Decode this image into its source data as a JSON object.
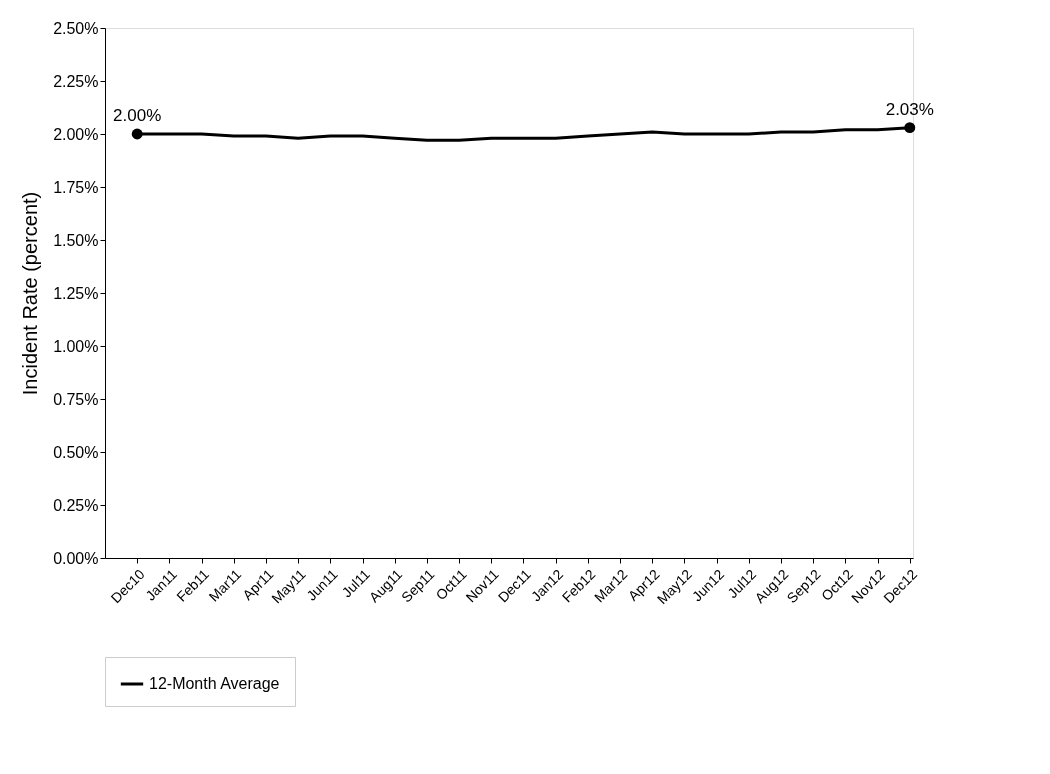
{
  "chart_data": {
    "type": "line",
    "ylabel": "Incident Rate (percent)",
    "categories": [
      "Dec10",
      "Jan11",
      "Feb11",
      "Mar11",
      "Apr11",
      "May11",
      "Jun11",
      "Jul11",
      "Aug11",
      "Sep11",
      "Oct11",
      "Nov11",
      "Dec11",
      "Jan12",
      "Feb12",
      "Mar12",
      "Apr12",
      "May12",
      "Jun12",
      "Jul12",
      "Aug12",
      "Sep12",
      "Oct12",
      "Nov12",
      "Dec12"
    ],
    "series": [
      {
        "name": "12-Month Average",
        "color": "#000000",
        "values": [
          2.0,
          2.0,
          2.0,
          1.99,
          1.99,
          1.98,
          1.99,
          1.99,
          1.98,
          1.97,
          1.97,
          1.98,
          1.98,
          1.98,
          1.99,
          2.0,
          2.01,
          2.0,
          2.0,
          2.0,
          2.01,
          2.01,
          2.02,
          2.02,
          2.03
        ],
        "value_labels": [
          "2.00%",
          null,
          null,
          null,
          null,
          null,
          null,
          null,
          null,
          null,
          null,
          null,
          null,
          null,
          null,
          null,
          null,
          null,
          null,
          null,
          null,
          null,
          null,
          null,
          "2.03%"
        ]
      }
    ],
    "ylim": [
      0,
      2.5
    ],
    "yticks": [
      {
        "value": 0,
        "label": "0.00%"
      },
      {
        "value": 0.25,
        "label": "0.25%"
      },
      {
        "value": 0.5,
        "label": "0.50%"
      },
      {
        "value": 0.75,
        "label": "0.75%"
      },
      {
        "value": 1.0,
        "label": "1.00%"
      },
      {
        "value": 1.25,
        "label": "1.25%"
      },
      {
        "value": 1.5,
        "label": "1.50%"
      },
      {
        "value": 1.75,
        "label": "1.75%"
      },
      {
        "value": 2.0,
        "label": "2.00%"
      },
      {
        "value": 2.25,
        "label": "2.25%"
      },
      {
        "value": 2.5,
        "label": "2.50%"
      }
    ],
    "grid": false,
    "legend": "bottom",
    "line_style": "solid"
  }
}
